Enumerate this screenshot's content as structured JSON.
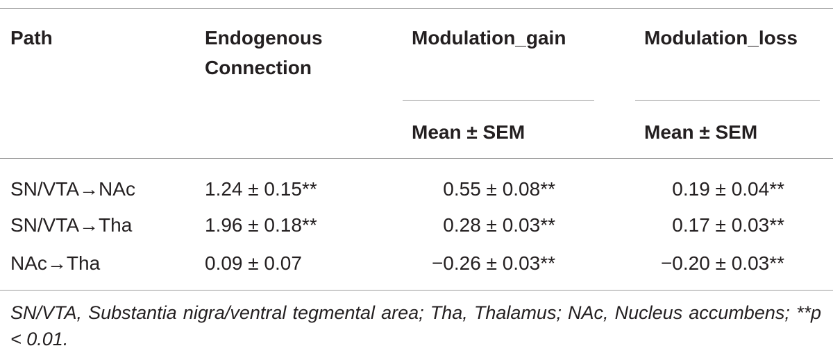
{
  "table": {
    "header": {
      "columns": [
        "Path",
        "Endogenous Connection",
        "Modulation_gain",
        "Modulation_loss"
      ],
      "subheader": [
        "Mean ± SEM",
        "Mean ± SEM"
      ]
    },
    "rows": [
      [
        "SN/VTA→NAc",
        "1.24 ± 0.15**",
        "0.55 ± 0.08**",
        "0.19 ± 0.04**"
      ],
      [
        "SN/VTA→Tha",
        "1.96 ± 0.18**",
        "0.28 ± 0.03**",
        "0.17 ± 0.03**"
      ],
      [
        "NAc→Tha",
        "0.09 ± 0.07",
        "−0.26 ± 0.03**",
        "−0.20 ± 0.03**"
      ]
    ]
  },
  "footnote": "SN/VTA, Substantia nigra/ventral tegmental area; Tha, Thalamus; NAc, Nucleus accumbens; **p < 0.01."
}
